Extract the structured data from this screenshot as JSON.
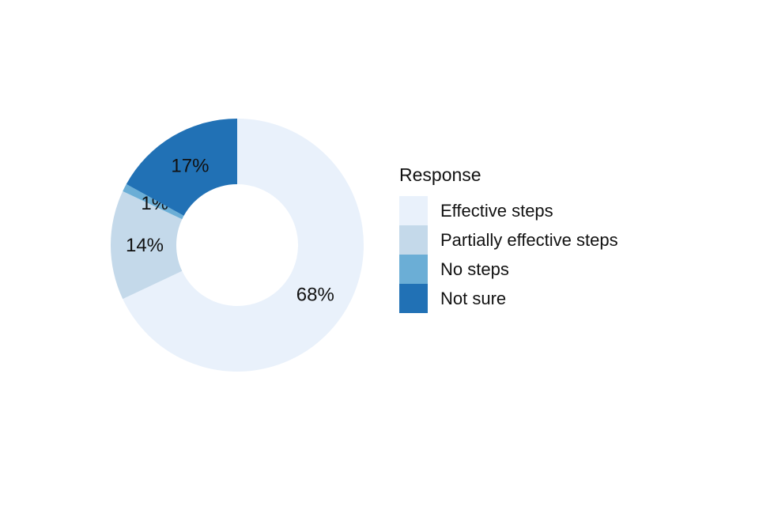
{
  "chart_data": {
    "type": "pie",
    "subtype": "donut",
    "title": "",
    "legend_title": "Response",
    "legend_position": "right",
    "categories": [
      "Effective steps",
      "Partially effective steps",
      "No steps",
      "Not sure"
    ],
    "values": [
      68,
      14,
      1,
      17
    ],
    "labels": [
      "68%",
      "14%",
      "1%",
      "17%"
    ],
    "colors": [
      "#e9f1fb",
      "#c4d9ea",
      "#6baed6",
      "#2171b5"
    ],
    "start_angle_deg": 0,
    "direction": "clockwise",
    "label_color": "#111111",
    "background": "#ffffff"
  }
}
